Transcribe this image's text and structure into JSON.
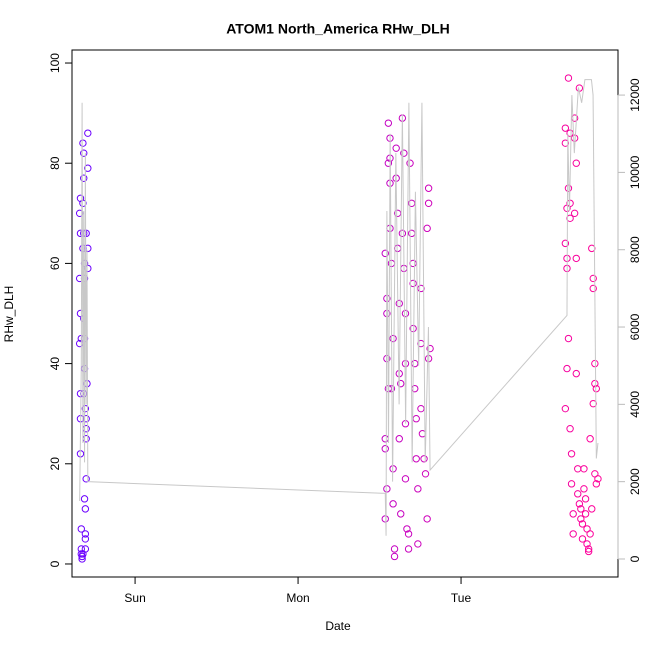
{
  "chart_data": {
    "type": "scatter",
    "title": "ATOM1 North_America RHw_DLH",
    "x_label": "Date",
    "y_label": "RHw_DLH",
    "xlim": [
      -0.387,
      2.963
    ],
    "xticks": [
      {
        "value": 0,
        "label": "Sun"
      },
      {
        "value": 1,
        "label": "Mon"
      },
      {
        "value": 2,
        "label": "Tue"
      }
    ],
    "ylim": [
      -2.6,
      102.6
    ],
    "yticks": [
      0,
      20,
      40,
      60,
      80,
      100
    ],
    "y2lim": [
      -466,
      13166
    ],
    "y2ticks": [
      0,
      2000,
      4000,
      6000,
      8000,
      10000,
      12000
    ],
    "y2_color": "#bbbbbb",
    "color_gradient": [
      "#6a00ff",
      "#ff0099"
    ],
    "series": [
      {
        "type": "scatter",
        "x": [
          -0.34,
          -0.335,
          -0.335,
          -0.34,
          -0.335,
          -0.34,
          -0.33,
          -0.335,
          -0.335,
          -0.335,
          -0.33,
          -0.33,
          -0.33,
          -0.325,
          -0.325,
          -0.32,
          -0.32,
          -0.315,
          -0.315,
          -0.32,
          -0.315,
          -0.32,
          -0.31,
          -0.31,
          -0.315,
          -0.31,
          -0.31,
          -0.315,
          -0.305,
          -0.31,
          -0.305,
          -0.305,
          -0.305,
          -0.305,
          -0.3,
          -0.3,
          -0.3,
          -0.3,
          -0.29,
          -0.29,
          -0.29,
          -0.29,
          -0.295,
          -0.3,
          1.535,
          1.545,
          1.545,
          1.545,
          1.554,
          1.535,
          1.535,
          1.545,
          1.535,
          1.554,
          1.564,
          1.564,
          1.554,
          1.564,
          1.564,
          1.573,
          1.583,
          1.573,
          1.583,
          1.583,
          1.592,
          1.592,
          1.602,
          1.602,
          1.611,
          1.611,
          1.621,
          1.621,
          1.63,
          1.621,
          1.63,
          1.64,
          1.649,
          1.64,
          1.649,
          1.659,
          1.659,
          1.659,
          1.659,
          1.668,
          1.678,
          1.678,
          1.687,
          1.697,
          1.697,
          1.706,
          1.706,
          1.706,
          1.716,
          1.716,
          1.725,
          1.725,
          1.735,
          1.735,
          1.754,
          1.754,
          1.754,
          1.763,
          1.773,
          1.782,
          1.792,
          1.792,
          1.801,
          1.801,
          1.81,
          1.801,
          2.64,
          2.64,
          2.65,
          2.64,
          2.65,
          2.65,
          2.65,
          2.64,
          2.659,
          2.669,
          2.659,
          2.669,
          2.669,
          2.659,
          2.669,
          2.678,
          2.678,
          2.688,
          2.688,
          2.697,
          2.697,
          2.707,
          2.697,
          2.707,
          2.707,
          2.716,
          2.716,
          2.726,
          2.726,
          2.735,
          2.735,
          2.745,
          2.745,
          2.754,
          2.754,
          2.764,
          2.764,
          2.773,
          2.773,
          2.783,
          2.783,
          2.792,
          2.792,
          2.802,
          2.811,
          2.811,
          2.821,
          2.821,
          2.83,
          2.821,
          2.83,
          2.84,
          2.811,
          2.802
        ],
        "values": [
          70,
          73,
          66,
          57,
          50,
          44,
          45,
          34,
          29,
          22,
          7,
          3,
          2,
          1.5,
          1,
          2,
          84,
          82,
          77,
          72,
          66,
          63,
          60,
          57,
          49,
          45,
          39,
          34,
          31,
          13,
          11,
          6,
          5,
          3,
          27,
          25,
          17,
          66,
          86,
          79,
          63,
          59,
          36,
          29,
          62,
          53,
          50,
          41,
          35,
          25,
          23,
          15,
          9,
          88,
          85,
          81,
          80,
          76,
          67,
          60,
          45,
          35,
          19,
          12,
          3,
          1.5,
          83,
          77,
          70,
          63,
          52,
          38,
          36,
          25,
          10,
          89,
          82,
          66,
          59,
          50,
          40,
          28,
          17,
          7,
          6,
          3,
          80,
          72,
          66,
          60,
          56,
          47,
          40,
          35,
          29,
          21,
          15,
          4,
          55,
          44,
          31,
          26,
          21,
          18,
          9,
          67,
          75,
          72,
          43,
          41,
          87,
          84,
          71,
          64,
          61,
          59,
          39,
          31,
          97,
          86,
          75,
          72,
          69,
          45,
          27,
          22,
          16,
          10,
          6,
          89,
          85,
          80,
          70,
          61,
          38,
          19,
          14,
          95,
          12,
          11,
          9,
          8,
          5,
          19,
          15,
          13,
          10,
          7,
          4,
          3,
          2.5,
          6,
          25,
          63,
          57,
          55,
          40,
          36,
          35,
          18,
          16,
          17,
          32,
          11
        ]
      },
      {
        "type": "line",
        "axis": "y2",
        "color": "#c8c8c8",
        "x": [
          -0.34,
          -0.33,
          -0.325,
          -0.32,
          -0.315,
          -0.31,
          -0.305,
          -0.3,
          -0.295,
          -0.29,
          1.52,
          1.535,
          1.54,
          1.545,
          1.555,
          1.565,
          1.58,
          1.6,
          1.62,
          1.64,
          1.66,
          1.68,
          1.7,
          1.72,
          1.74,
          1.76,
          1.78,
          1.8,
          1.81,
          2.65,
          2.655,
          2.665,
          2.68,
          2.695,
          2.72,
          2.74,
          2.76,
          2.78,
          2.8,
          2.81,
          2.83,
          2.84
        ],
        "values": [
          1500,
          5000,
          11800,
          3000,
          9000,
          2500,
          10500,
          4000,
          8000,
          2000,
          1700,
          1700,
          600,
          9000,
          3000,
          11000,
          2000,
          10500,
          4000,
          11500,
          3500,
          11800,
          2500,
          9500,
          5000,
          11800,
          2500,
          6000,
          2300,
          6300,
          11000,
          9000,
          12000,
          10500,
          12200,
          11800,
          12400,
          12400,
          12400,
          12000,
          2600,
          3000
        ]
      }
    ]
  }
}
